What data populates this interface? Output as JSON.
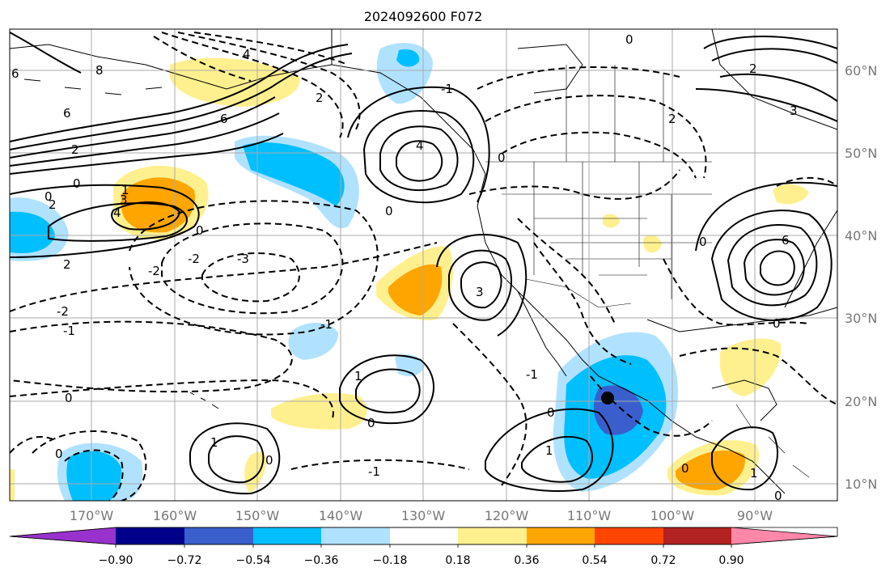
{
  "title": "2024092600 F072",
  "map": {
    "lon_labels": [
      "170°W",
      "160°W",
      "150°W",
      "140°W",
      "130°W",
      "120°W",
      "110°W",
      "100°W",
      "90°W"
    ],
    "lat_labels": [
      "60°N",
      "50°N",
      "40°N",
      "30°N",
      "20°N",
      "10°N"
    ],
    "contour_labels": [
      "0",
      "2",
      "4",
      "6",
      "-1",
      "-2",
      "-3",
      "1",
      "3",
      "8"
    ],
    "marker": "storm-center-dot"
  },
  "colorbar": {
    "tick_labels": [
      "−0.90",
      "−0.72",
      "−0.54",
      "−0.36",
      "−0.18",
      "0.18",
      "0.36",
      "0.54",
      "0.72",
      "0.90"
    ],
    "colors": [
      "#9932cc",
      "#00008b",
      "#3a5fcd",
      "#00bfff",
      "#b0e2ff",
      "#ffffff",
      "#fff08f",
      "#ffa500",
      "#ff4500",
      "#b22222",
      "#ff88aa"
    ]
  }
}
